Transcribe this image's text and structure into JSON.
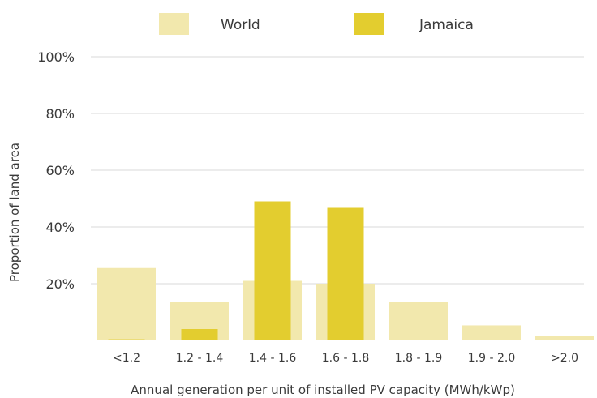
{
  "chart_data": {
    "type": "bar",
    "categories": [
      "<1.2",
      "1.2 - 1.4",
      "1.4 - 1.6",
      "1.6 - 1.8",
      "1.8 - 1.9",
      "1.9 - 2.0",
      ">2.0"
    ],
    "series": [
      {
        "name": "World",
        "values": [
          25.5,
          13.5,
          21,
          20,
          13.5,
          5.3,
          1.5
        ],
        "color": "#f2e8ad"
      },
      {
        "name": "Jamaica",
        "values": [
          0.4,
          4,
          49,
          47,
          0,
          0,
          0
        ],
        "color": "#e3cd2f"
      }
    ],
    "ylim": [
      0,
      100
    ],
    "yticks": [
      20,
      40,
      60,
      80,
      100
    ],
    "ytick_labels": [
      "20%",
      "40%",
      "60%",
      "80%",
      "100%"
    ],
    "xlabel": "Annual generation per unit of installed PV capacity (MWh/kWp)",
    "ylabel": "Proportion of land area",
    "grid": true,
    "grid_color": "#ececec",
    "legend_position": "top"
  }
}
